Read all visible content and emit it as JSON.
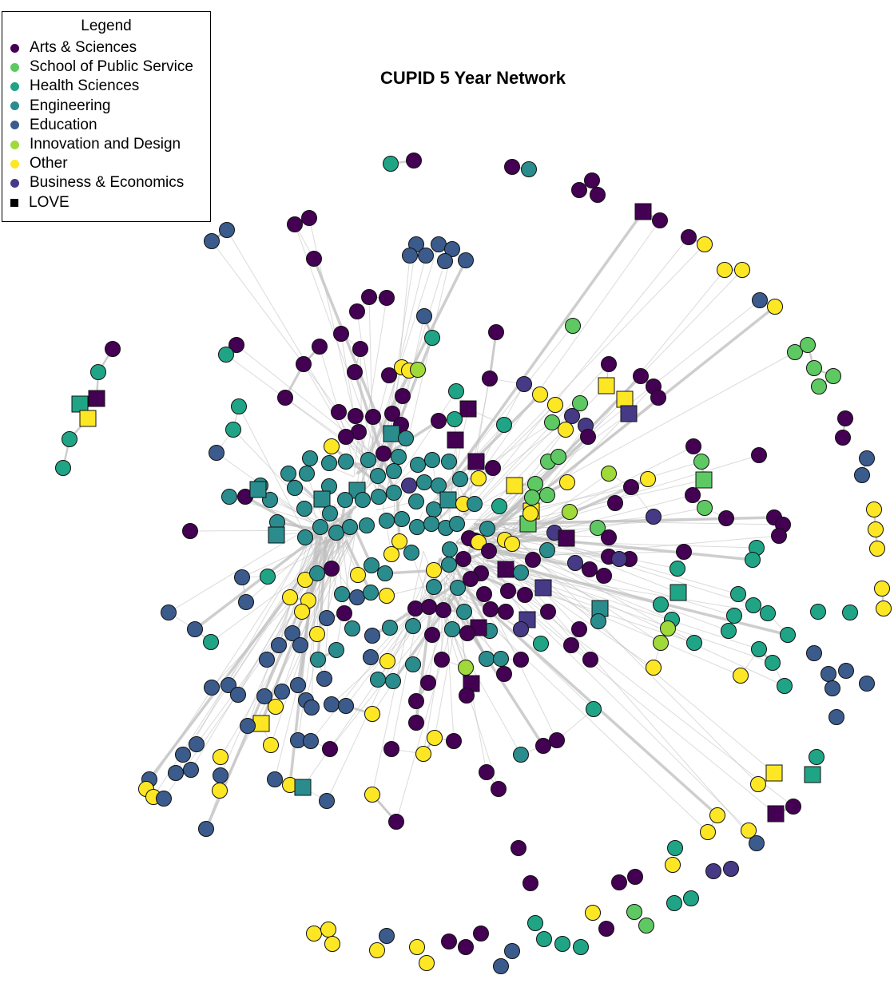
{
  "title": "CUPID 5 Year Network",
  "legend": {
    "title": "Legend",
    "items": [
      {
        "label": "Arts & Sciences",
        "color": "#440154",
        "shape": "circle"
      },
      {
        "label": "School of Public Service",
        "color": "#5ec962",
        "shape": "circle"
      },
      {
        "label": "Health Sciences",
        "color": "#20a486",
        "shape": "circle"
      },
      {
        "label": "Engineering",
        "color": "#2a8c8c",
        "shape": "circle"
      },
      {
        "label": "Education",
        "color": "#3b5b8c",
        "shape": "circle"
      },
      {
        "label": "Innovation and Design",
        "color": "#9fd93a",
        "shape": "circle"
      },
      {
        "label": "Other",
        "color": "#fde725",
        "shape": "circle"
      },
      {
        "label": "Business & Economics",
        "color": "#463a86",
        "shape": "circle"
      },
      {
        "label": "LOVE",
        "color": "#000000",
        "shape": "square"
      }
    ]
  },
  "colors": {
    "arts_sciences": "#440154",
    "public_service": "#5ec962",
    "health_sciences": "#20a486",
    "engineering": "#2a8c8c",
    "education": "#3b5b8c",
    "innovation_design": "#9fd93a",
    "other": "#fde725",
    "business_economics": "#463a86",
    "edge": "#bdbdbd",
    "node_stroke": "#111111"
  }
}
